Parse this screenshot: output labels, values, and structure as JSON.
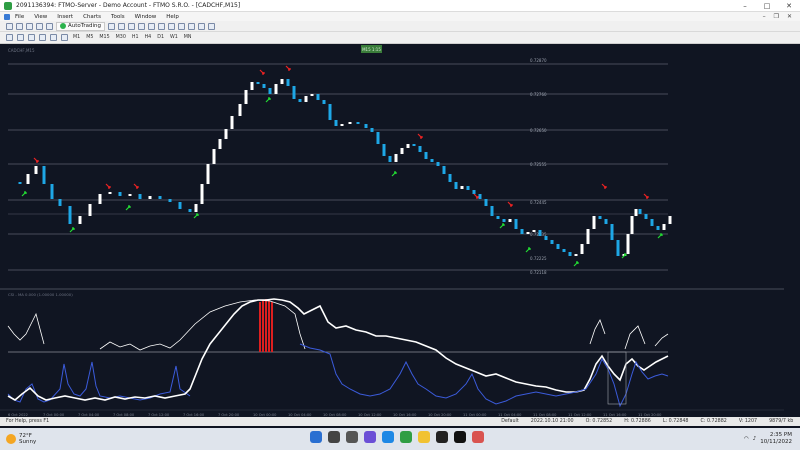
{
  "window": {
    "title": "2091136394: FTMO-Server - Demo Account - FTMO S.R.O. - [CADCHF,M15]",
    "minimize": "–",
    "maximize": "□",
    "close": "✕"
  },
  "menu": [
    "File",
    "View",
    "Insert",
    "Charts",
    "Tools",
    "Window",
    "Help"
  ],
  "mdi": {
    "minimize": "–",
    "restore": "❐",
    "close": "✕"
  },
  "toolbar": {
    "autotrading_label": "AutoTrading"
  },
  "timeframes": [
    "M1",
    "M5",
    "M15",
    "M30",
    "H1",
    "H4",
    "D1",
    "W1",
    "MN"
  ],
  "chart": {
    "symbol_label": "CADCHF,M15",
    "badge": "M15 1:15",
    "price_labels": [
      "0.72870",
      "0.72760",
      "0.72650",
      "0.72555",
      "0.72445",
      "0.72335",
      "0.72225",
      "0.72118"
    ],
    "indicator_label": "CSI - MA 0.000 (1.00000 1.00000)",
    "time_labels": [
      "6 Oct 2022",
      "7 Oct 00:00",
      "7 Oct 04:00",
      "7 Oct 08:00",
      "7 Oct 12:00",
      "7 Oct 16:00",
      "7 Oct 20:00",
      "10 Oct 00:00",
      "10 Oct 04:00",
      "10 Oct 08:00",
      "10 Oct 12:00",
      "10 Oct 16:00",
      "10 Oct 20:00",
      "11 Oct 00:00",
      "11 Oct 04:00",
      "11 Oct 08:00",
      "11 Oct 12:00",
      "11 Oct 16:00",
      "11 Oct 20:00"
    ],
    "colors": {
      "bull": "#ffffff",
      "bear": "#1ea7e6",
      "up_arrow": "#22dd33",
      "down_arrow": "#ee2222",
      "line_white": "#ffffff",
      "line_blue": "#3b5bdb",
      "hist_red": "#dd1f1f"
    }
  },
  "status": {
    "help": "For Help, press F1",
    "profile": "Default",
    "datetime": "2022.10.10 21:00",
    "open": "O: 0.72852",
    "high": "H: 0.72886",
    "low": "L: 0.72848",
    "close": "C: 0.72882",
    "volume": "V: 1207",
    "traffic": "9879/7 kb"
  },
  "taskbar": {
    "temperature": "72°F",
    "weather": "Sunny",
    "time": "2:35 PM",
    "date": "10/11/2022"
  }
}
